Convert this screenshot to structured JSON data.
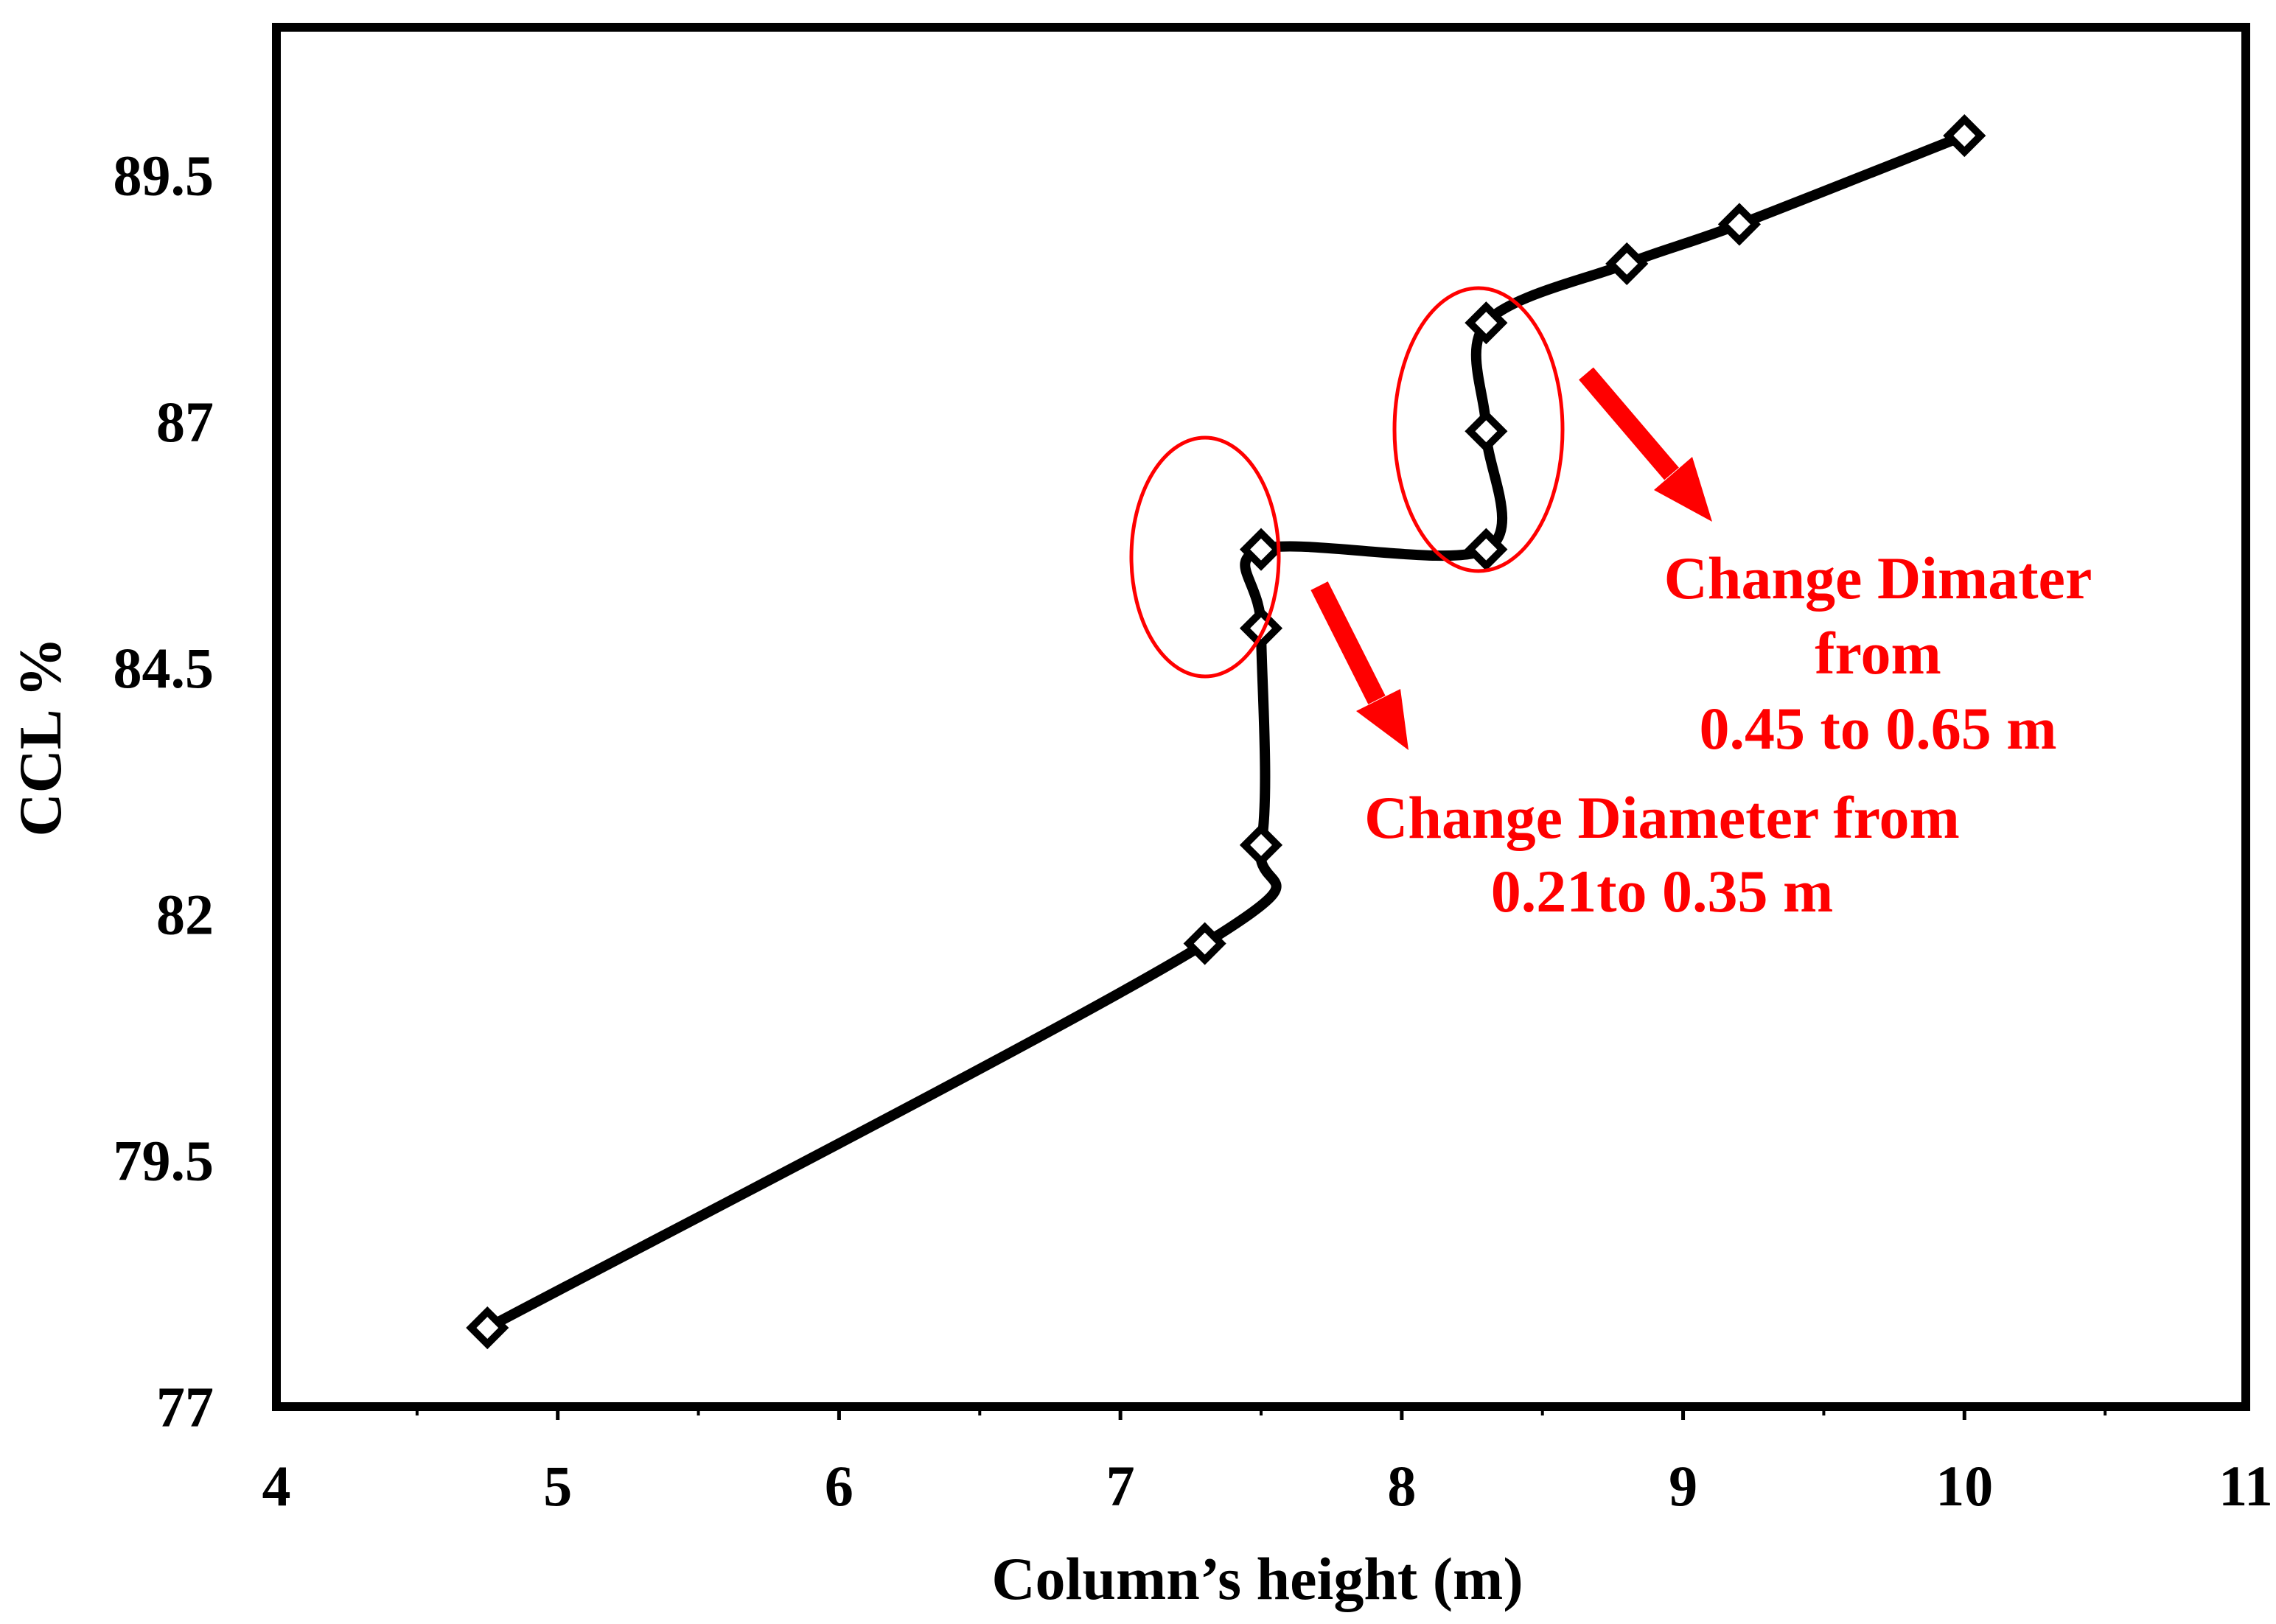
{
  "chart_data": {
    "type": "line",
    "title": "",
    "xlabel": "Column’s height (m)",
    "ylabel": "CCL %",
    "xlim": [
      4,
      11
    ],
    "ylim": [
      77,
      91
    ],
    "xticks": [
      "4",
      "5",
      "6",
      "7",
      "8",
      "9",
      "10",
      "11"
    ],
    "yticks": [
      "77",
      "79.5",
      "82",
      "84.5",
      "87",
      "89.5"
    ],
    "grid": false,
    "series": [
      {
        "name": "CCL",
        "color": "#000000",
        "marker": "diamond",
        "x": [
          4.75,
          7.3,
          7.5,
          7.5,
          7.5,
          8.3,
          8.3,
          8.3,
          8.8,
          9.2,
          10.0
        ],
        "y": [
          77.8,
          81.7,
          82.7,
          84.9,
          85.7,
          85.7,
          86.9,
          88.0,
          88.6,
          89.0,
          89.9
        ]
      }
    ],
    "annotations": [
      {
        "id": "small-diameter",
        "lines": [
          "Change Diameter from",
          "0.21to 0.35 m"
        ],
        "color": "#ff0000"
      },
      {
        "id": "large-diameter",
        "lines": [
          "Change Dimater",
          "from",
          "0.45 to 0.65 m"
        ],
        "color": "#ff0000"
      }
    ]
  }
}
